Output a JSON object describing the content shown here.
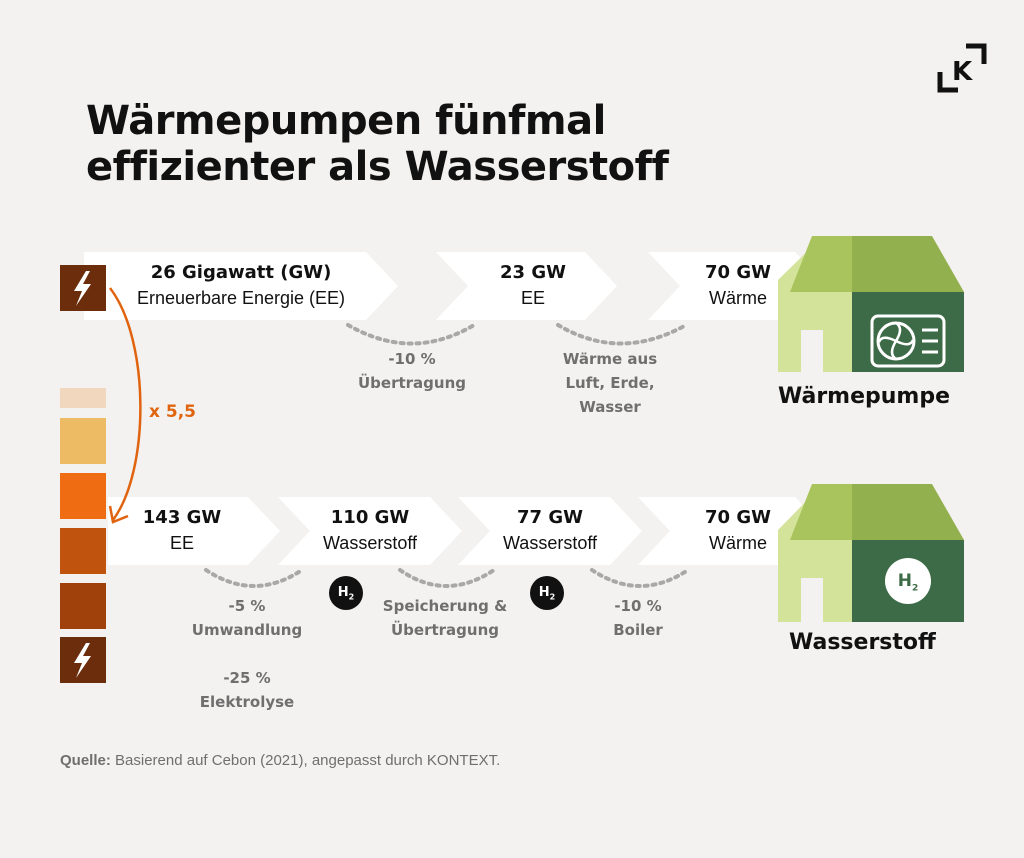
{
  "title": {
    "line1": "Wärmepumpen fünfmal",
    "line2": "effizienter als Wasserstoff"
  },
  "logo": {
    "icon": "k-bracket-logo",
    "letter": "K"
  },
  "colors": {
    "background": "#f4f2f0",
    "orange": "#e0640f",
    "house_light": "#d4e39a",
    "house_roof": "#93b04e",
    "house_wall": "#3e6b47",
    "dark_brown": "#6b2d0c"
  },
  "heatpump_row": {
    "steps": [
      {
        "value": "26 Gigawatt (GW)",
        "sub": "Erneuerbare Energie (EE)"
      },
      {
        "value": "23 GW",
        "sub": "EE"
      },
      {
        "value": "70 GW",
        "sub": "Wärme"
      }
    ],
    "notes": [
      {
        "line1": "-10 %",
        "line2": "Übertragung"
      },
      {
        "line1": "Wärme aus",
        "line2": "Luft, Erde,",
        "line3": "Wasser"
      }
    ],
    "label": "Wärmepumpe"
  },
  "hydrogen_row": {
    "steps": [
      {
        "value": "143 GW",
        "sub": "EE"
      },
      {
        "value": "110 GW",
        "sub": "Wasserstoff"
      },
      {
        "value": "77 GW",
        "sub": "Wasserstoff"
      },
      {
        "value": "70 GW",
        "sub": "Wärme"
      }
    ],
    "notes": [
      {
        "line1": "-5 %",
        "line2": "Umwandlung"
      },
      {
        "line1": "Speicherung &",
        "line2": "Übertragung"
      },
      {
        "line1": "-10 %",
        "line2": "Boiler"
      },
      {
        "line1": "-25 %",
        "line2": "Elektrolyse"
      }
    ],
    "badge": "H",
    "badge_sub": "2",
    "label": "Wasserstoff"
  },
  "factor": "x 5,5",
  "source": {
    "bold": "Quelle:",
    "text": " Basierend auf Cebon (2021), angepasst durch KONTEXT."
  }
}
